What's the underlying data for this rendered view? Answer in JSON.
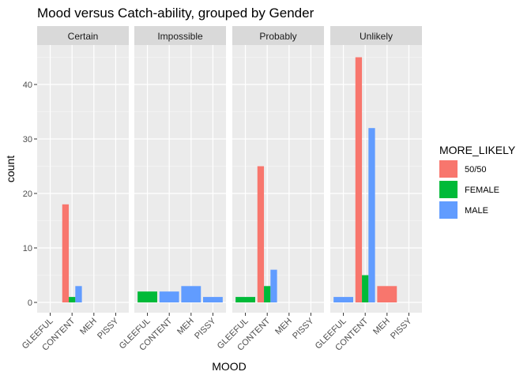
{
  "chart_data": {
    "type": "bar",
    "title": "Mood versus Catch-ability, grouped by Gender",
    "xlabel": "MOOD",
    "ylabel": "count",
    "ylim": [
      0,
      47
    ],
    "yticks": [
      0,
      10,
      20,
      30,
      40
    ],
    "categories": [
      "GLEEFUL",
      "CONTENT",
      "MEH",
      "PISSY"
    ],
    "legend": {
      "title": "MORE_LIKELY",
      "position": "right",
      "items": [
        {
          "label": "50/50",
          "color": "#F8766D"
        },
        {
          "label": "FEMALE",
          "color": "#00BA38"
        },
        {
          "label": "MALE",
          "color": "#619CFF"
        }
      ]
    },
    "facets": [
      {
        "label": "Certain",
        "bars": [
          {
            "category": "CONTENT",
            "group": "50/50",
            "value": 18,
            "slot": 0,
            "nslots": 3
          },
          {
            "category": "CONTENT",
            "group": "FEMALE",
            "value": 1,
            "slot": 1,
            "nslots": 3
          },
          {
            "category": "CONTENT",
            "group": "MALE",
            "value": 3,
            "slot": 2,
            "nslots": 3
          }
        ]
      },
      {
        "label": "Impossible",
        "bars": [
          {
            "category": "GLEEFUL",
            "group": "FEMALE",
            "value": 2,
            "slot": 0,
            "nslots": 1
          },
          {
            "category": "CONTENT",
            "group": "MALE",
            "value": 2,
            "slot": 0,
            "nslots": 1
          },
          {
            "category": "MEH",
            "group": "MALE",
            "value": 3,
            "slot": 0,
            "nslots": 1
          },
          {
            "category": "PISSY",
            "group": "MALE",
            "value": 1,
            "slot": 0,
            "nslots": 1
          }
        ]
      },
      {
        "label": "Probably",
        "bars": [
          {
            "category": "GLEEFUL",
            "group": "FEMALE",
            "value": 1,
            "slot": 0,
            "nslots": 1
          },
          {
            "category": "CONTENT",
            "group": "50/50",
            "value": 25,
            "slot": 0,
            "nslots": 3
          },
          {
            "category": "CONTENT",
            "group": "FEMALE",
            "value": 3,
            "slot": 1,
            "nslots": 3
          },
          {
            "category": "CONTENT",
            "group": "MALE",
            "value": 6,
            "slot": 2,
            "nslots": 3
          }
        ]
      },
      {
        "label": "Unlikely",
        "bars": [
          {
            "category": "GLEEFUL",
            "group": "MALE",
            "value": 1,
            "slot": 0,
            "nslots": 1
          },
          {
            "category": "CONTENT",
            "group": "50/50",
            "value": 45,
            "slot": 0,
            "nslots": 3
          },
          {
            "category": "CONTENT",
            "group": "FEMALE",
            "value": 5,
            "slot": 1,
            "nslots": 3
          },
          {
            "category": "CONTENT",
            "group": "MALE",
            "value": 32,
            "slot": 2,
            "nslots": 3
          },
          {
            "category": "MEH",
            "group": "50/50",
            "value": 3,
            "slot": 0,
            "nslots": 1
          }
        ]
      }
    ]
  }
}
